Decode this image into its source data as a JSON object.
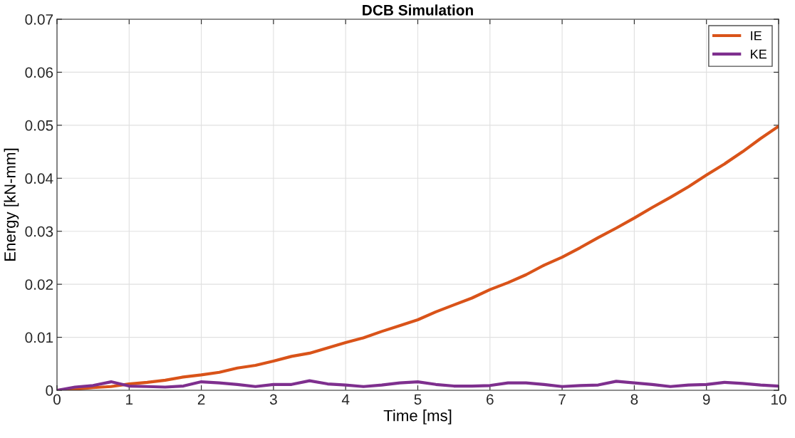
{
  "chart_data": {
    "type": "line",
    "title": "DCB Simulation",
    "xlabel": "Time [ms]",
    "ylabel": "Energy [kN-mm]",
    "x": [
      0,
      0.25,
      0.5,
      0.75,
      1,
      1.25,
      1.5,
      1.75,
      2,
      2.25,
      2.5,
      2.75,
      3,
      3.25,
      3.5,
      3.75,
      4,
      4.25,
      4.5,
      4.75,
      5,
      5.25,
      5.5,
      5.75,
      6,
      6.25,
      6.5,
      6.75,
      7,
      7.25,
      7.5,
      7.75,
      8,
      8.25,
      8.5,
      8.75,
      9,
      9.25,
      9.5,
      9.75,
      10
    ],
    "series": [
      {
        "name": "IE",
        "color": "#d95319",
        "values": [
          0,
          0.0002,
          0.0005,
          0.0007,
          0.0012,
          0.0015,
          0.0019,
          0.0025,
          0.0029,
          0.0034,
          0.0042,
          0.0047,
          0.0055,
          0.0064,
          0.007,
          0.008,
          0.009,
          0.0099,
          0.0111,
          0.0122,
          0.0133,
          0.0148,
          0.0161,
          0.0174,
          0.019,
          0.0203,
          0.0218,
          0.0236,
          0.0251,
          0.0269,
          0.0288,
          0.0306,
          0.0325,
          0.0345,
          0.0364,
          0.0384,
          0.0406,
          0.0427,
          0.045,
          0.0475,
          0.0498
        ]
      },
      {
        "name": "KE",
        "color": "#7e2f8e",
        "values": [
          0,
          0.0006,
          0.0009,
          0.0016,
          0.0008,
          0.0007,
          0.0006,
          0.0008,
          0.0016,
          0.0014,
          0.0011,
          0.0007,
          0.0011,
          0.0011,
          0.0018,
          0.0012,
          0.001,
          0.0007,
          0.001,
          0.0014,
          0.0016,
          0.0011,
          0.0008,
          0.0008,
          0.0009,
          0.0014,
          0.0014,
          0.0011,
          0.0007,
          0.0009,
          0.001,
          0.0017,
          0.0014,
          0.0011,
          0.0007,
          0.001,
          0.0011,
          0.0015,
          0.0013,
          0.001,
          0.0008
        ]
      }
    ],
    "xlim": [
      0,
      10
    ],
    "xticks": [
      0,
      1,
      2,
      3,
      4,
      5,
      6,
      7,
      8,
      9,
      10
    ],
    "ylim": [
      0,
      0.07
    ],
    "yticks": [
      0,
      0.01,
      0.02,
      0.03,
      0.04,
      0.05,
      0.06,
      0.07
    ],
    "grid": true,
    "legend": "top right",
    "marker": "none",
    "line_style": "solid"
  }
}
